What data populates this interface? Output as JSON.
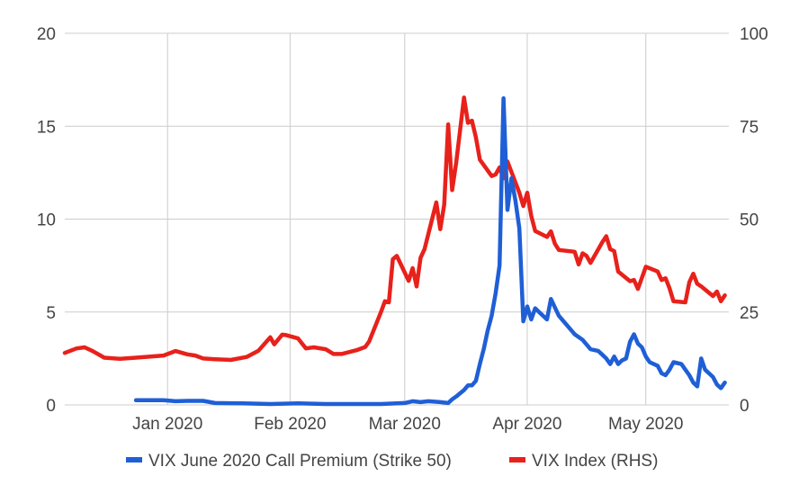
{
  "chart_data": {
    "type": "line",
    "x_range": [
      "2019-12-06",
      "2020-05-22"
    ],
    "y_left": {
      "ylim": [
        0,
        20
      ],
      "ticks": [
        "0",
        "5",
        "10",
        "15",
        "20"
      ]
    },
    "y_right": {
      "ylim": [
        0,
        100
      ],
      "ticks": [
        "0",
        "25",
        "50",
        "75",
        "100"
      ]
    },
    "x_ticks": [
      {
        "date": "2020-01-01",
        "label": "Jan 2020"
      },
      {
        "date": "2020-02-01",
        "label": "Feb 2020"
      },
      {
        "date": "2020-03-01",
        "label": "Mar 2020"
      },
      {
        "date": "2020-04-01",
        "label": "Apr 2020"
      },
      {
        "date": "2020-05-01",
        "label": "May 2020"
      }
    ],
    "grid": true,
    "legend_position": "bottom",
    "series": [
      {
        "name": "VIX June 2020 Call Premium (Strike 50)",
        "axis": "left",
        "color": "#1f5fd6",
        "points": [
          [
            "2019-12-24",
            0.25
          ],
          [
            "2019-12-31",
            0.25
          ],
          [
            "2020-01-03",
            0.2
          ],
          [
            "2020-01-06",
            0.22
          ],
          [
            "2020-01-10",
            0.22
          ],
          [
            "2020-01-13",
            0.1
          ],
          [
            "2020-01-20",
            0.08
          ],
          [
            "2020-01-27",
            0.05
          ],
          [
            "2020-02-03",
            0.08
          ],
          [
            "2020-02-10",
            0.05
          ],
          [
            "2020-02-17",
            0.05
          ],
          [
            "2020-02-24",
            0.05
          ],
          [
            "2020-03-01",
            0.1
          ],
          [
            "2020-03-03",
            0.2
          ],
          [
            "2020-03-05",
            0.15
          ],
          [
            "2020-03-07",
            0.2
          ],
          [
            "2020-03-10",
            0.15
          ],
          [
            "2020-03-12",
            0.1
          ],
          [
            "2020-03-13",
            0.3
          ],
          [
            "2020-03-14",
            0.45
          ],
          [
            "2020-03-16",
            0.8
          ],
          [
            "2020-03-17",
            1.05
          ],
          [
            "2020-03-18",
            1.05
          ],
          [
            "2020-03-19",
            1.3
          ],
          [
            "2020-03-20",
            2.2
          ],
          [
            "2020-03-21",
            3.0
          ],
          [
            "2020-03-22",
            4.0
          ],
          [
            "2020-03-23",
            4.8
          ],
          [
            "2020-03-24",
            6.0
          ],
          [
            "2020-03-25",
            7.5
          ],
          [
            "2020-03-26",
            16.5
          ],
          [
            "2020-03-27",
            10.5
          ],
          [
            "2020-03-28",
            12.2
          ],
          [
            "2020-03-29",
            11.0
          ],
          [
            "2020-03-30",
            9.5
          ],
          [
            "2020-03-31",
            4.5
          ],
          [
            "2020-04-01",
            5.3
          ],
          [
            "2020-04-02",
            4.6
          ],
          [
            "2020-04-03",
            5.2
          ],
          [
            "2020-04-04",
            5.0
          ],
          [
            "2020-04-06",
            4.6
          ],
          [
            "2020-04-07",
            5.7
          ],
          [
            "2020-04-09",
            4.8
          ],
          [
            "2020-04-11",
            4.3
          ],
          [
            "2020-04-13",
            3.8
          ],
          [
            "2020-04-15",
            3.5
          ],
          [
            "2020-04-17",
            3.0
          ],
          [
            "2020-04-19",
            2.9
          ],
          [
            "2020-04-20",
            2.7
          ],
          [
            "2020-04-21",
            2.5
          ],
          [
            "2020-04-22",
            2.2
          ],
          [
            "2020-04-23",
            2.6
          ],
          [
            "2020-04-24",
            2.2
          ],
          [
            "2020-04-25",
            2.4
          ],
          [
            "2020-04-26",
            2.5
          ],
          [
            "2020-04-27",
            3.4
          ],
          [
            "2020-04-28",
            3.8
          ],
          [
            "2020-04-29",
            3.3
          ],
          [
            "2020-04-30",
            3.1
          ],
          [
            "2020-05-01",
            2.6
          ],
          [
            "2020-05-02",
            2.3
          ],
          [
            "2020-05-04",
            2.1
          ],
          [
            "2020-05-05",
            1.7
          ],
          [
            "2020-05-06",
            1.6
          ],
          [
            "2020-05-07",
            1.9
          ],
          [
            "2020-05-08",
            2.3
          ],
          [
            "2020-05-10",
            2.2
          ],
          [
            "2020-05-11",
            1.9
          ],
          [
            "2020-05-12",
            1.6
          ],
          [
            "2020-05-13",
            1.2
          ],
          [
            "2020-05-14",
            1.0
          ],
          [
            "2020-05-15",
            2.5
          ],
          [
            "2020-05-16",
            1.9
          ],
          [
            "2020-05-17",
            1.7
          ],
          [
            "2020-05-18",
            1.5
          ],
          [
            "2020-05-19",
            1.1
          ],
          [
            "2020-05-20",
            0.9
          ],
          [
            "2020-05-21",
            1.2
          ]
        ]
      },
      {
        "name": "VIX Index (RHS)",
        "axis": "right",
        "color": "#e8211b",
        "points": [
          [
            "2019-12-06",
            14.0
          ],
          [
            "2019-12-09",
            15.2
          ],
          [
            "2019-12-11",
            15.5
          ],
          [
            "2019-12-13",
            14.5
          ],
          [
            "2019-12-16",
            12.7
          ],
          [
            "2019-12-20",
            12.4
          ],
          [
            "2019-12-24",
            12.7
          ],
          [
            "2019-12-31",
            13.3
          ],
          [
            "2020-01-03",
            14.5
          ],
          [
            "2020-01-06",
            13.6
          ],
          [
            "2020-01-08",
            13.3
          ],
          [
            "2020-01-10",
            12.5
          ],
          [
            "2020-01-13",
            12.3
          ],
          [
            "2020-01-17",
            12.1
          ],
          [
            "2020-01-21",
            12.9
          ],
          [
            "2020-01-24",
            14.6
          ],
          [
            "2020-01-27",
            18.2
          ],
          [
            "2020-01-28",
            16.3
          ],
          [
            "2020-01-30",
            18.9
          ],
          [
            "2020-01-31",
            18.8
          ],
          [
            "2020-02-03",
            17.9
          ],
          [
            "2020-02-05",
            15.2
          ],
          [
            "2020-02-07",
            15.5
          ],
          [
            "2020-02-10",
            15.0
          ],
          [
            "2020-02-12",
            13.7
          ],
          [
            "2020-02-14",
            13.7
          ],
          [
            "2020-02-18",
            14.8
          ],
          [
            "2020-02-20",
            15.6
          ],
          [
            "2020-02-21",
            17.1
          ],
          [
            "2020-02-24",
            25.0
          ],
          [
            "2020-02-25",
            27.9
          ],
          [
            "2020-02-26",
            27.6
          ],
          [
            "2020-02-27",
            39.2
          ],
          [
            "2020-02-28",
            40.1
          ],
          [
            "2020-03-02",
            33.4
          ],
          [
            "2020-03-03",
            36.8
          ],
          [
            "2020-03-04",
            31.9
          ],
          [
            "2020-03-05",
            39.6
          ],
          [
            "2020-03-06",
            41.9
          ],
          [
            "2020-03-09",
            54.5
          ],
          [
            "2020-03-10",
            47.3
          ],
          [
            "2020-03-11",
            53.9
          ],
          [
            "2020-03-12",
            75.5
          ],
          [
            "2020-03-13",
            57.8
          ],
          [
            "2020-03-14",
            65.0
          ],
          [
            "2020-03-16",
            82.7
          ],
          [
            "2020-03-17",
            75.9
          ],
          [
            "2020-03-18",
            76.5
          ],
          [
            "2020-03-19",
            72.0
          ],
          [
            "2020-03-20",
            66.0
          ],
          [
            "2020-03-23",
            61.6
          ],
          [
            "2020-03-24",
            62.0
          ],
          [
            "2020-03-25",
            63.9
          ],
          [
            "2020-03-26",
            61.0
          ],
          [
            "2020-03-27",
            65.5
          ],
          [
            "2020-03-30",
            57.1
          ],
          [
            "2020-03-31",
            53.5
          ],
          [
            "2020-04-01",
            57.1
          ],
          [
            "2020-04-02",
            50.9
          ],
          [
            "2020-04-03",
            46.8
          ],
          [
            "2020-04-06",
            45.2
          ],
          [
            "2020-04-07",
            46.7
          ],
          [
            "2020-04-08",
            43.4
          ],
          [
            "2020-04-09",
            41.7
          ],
          [
            "2020-04-13",
            41.2
          ],
          [
            "2020-04-14",
            37.8
          ],
          [
            "2020-04-15",
            40.8
          ],
          [
            "2020-04-16",
            40.1
          ],
          [
            "2020-04-17",
            38.2
          ],
          [
            "2020-04-20",
            43.8
          ],
          [
            "2020-04-21",
            45.4
          ],
          [
            "2020-04-22",
            41.9
          ],
          [
            "2020-04-23",
            41.4
          ],
          [
            "2020-04-24",
            35.9
          ],
          [
            "2020-04-27",
            33.3
          ],
          [
            "2020-04-28",
            33.6
          ],
          [
            "2020-04-29",
            31.2
          ],
          [
            "2020-04-30",
            34.2
          ],
          [
            "2020-05-01",
            37.2
          ],
          [
            "2020-05-04",
            35.9
          ],
          [
            "2020-05-05",
            33.6
          ],
          [
            "2020-05-06",
            34.1
          ],
          [
            "2020-05-07",
            31.4
          ],
          [
            "2020-05-08",
            27.9
          ],
          [
            "2020-05-11",
            27.6
          ],
          [
            "2020-05-12",
            33.0
          ],
          [
            "2020-05-13",
            35.3
          ],
          [
            "2020-05-14",
            32.6
          ],
          [
            "2020-05-15",
            31.9
          ],
          [
            "2020-05-18",
            29.3
          ],
          [
            "2020-05-19",
            30.5
          ],
          [
            "2020-05-20",
            27.9
          ],
          [
            "2020-05-21",
            29.5
          ]
        ]
      }
    ]
  }
}
